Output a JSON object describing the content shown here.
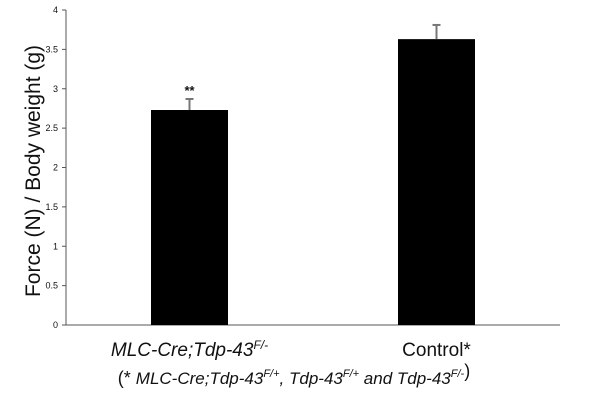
{
  "chart_data": {
    "type": "bar",
    "ylabel": "Force (N) / Body weight (g)",
    "ylim": [
      0,
      4
    ],
    "y_ticks": [
      "0",
      "0.5",
      "1",
      "1.5",
      "2",
      "2.5",
      "3",
      "3.5",
      "4"
    ],
    "grid": false,
    "categories": [
      {
        "main": "MLC-Cre;Tdp-43",
        "sup": "F/-",
        "italic": true
      },
      {
        "main": "Control*",
        "sup": "",
        "italic": false
      }
    ],
    "values": [
      2.73,
      3.63
    ],
    "error_upper": [
      2.87,
      3.81
    ],
    "annotations": [
      "**",
      ""
    ],
    "bar_color": "#000000",
    "footnote": {
      "open": "(* ",
      "parts": [
        {
          "text": "MLC-Cre;Tdp-43",
          "sup": "F/+",
          "after": ", "
        },
        {
          "text": "Tdp-43",
          "sup": "F/+",
          "after": " and "
        },
        {
          "text": "Tdp-43",
          "sup": "F/-",
          "after": ""
        }
      ],
      "close": ")"
    }
  }
}
